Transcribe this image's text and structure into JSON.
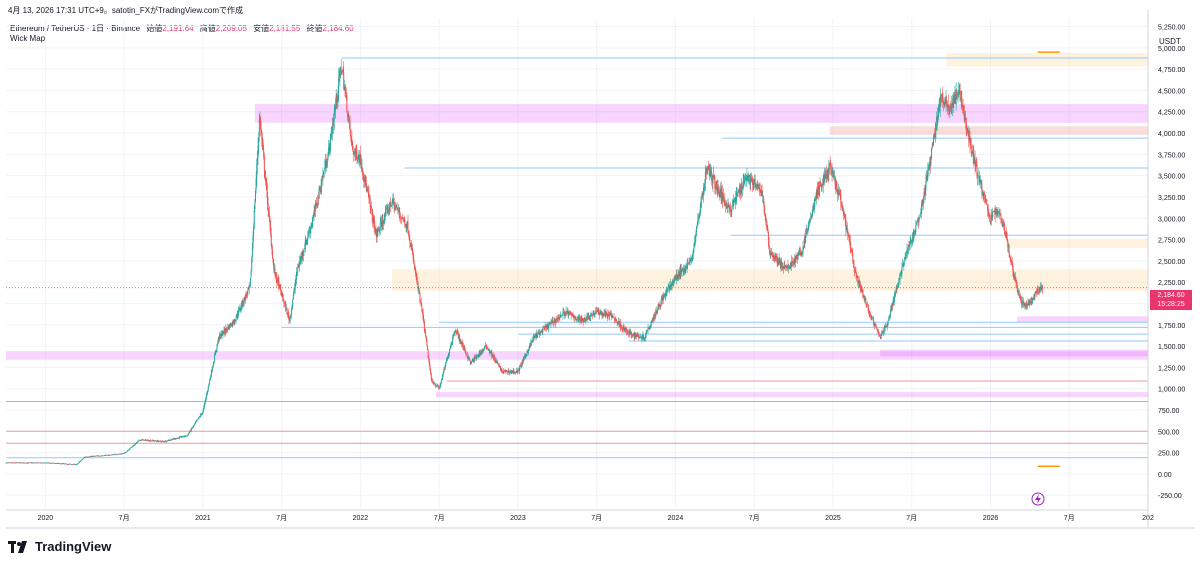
{
  "header": {
    "caption": "4月 13, 2026 17:31 UTC+9。satotin_FXがTradingView.comで作成",
    "symbol": "Ethereum / TetherUS · 1日 · Binance",
    "ohlc": [
      {
        "label": "始値",
        "value": "2,191.64"
      },
      {
        "label": "高値",
        "value": "2,209.05"
      },
      {
        "label": "安値",
        "value": "2,181.55"
      },
      {
        "label": "終値",
        "value": "2,184.60"
      }
    ],
    "indicator": "Wick Map"
  },
  "price_axis": {
    "unit": "USDT",
    "last_price": "2,184.60",
    "countdown": "15:28:25"
  },
  "branding": {
    "name": "TradingView"
  },
  "colors": {
    "up": "#26a69a",
    "down": "#ef5350",
    "price_line": "#e9356b",
    "zone_magenta": "#e040fb",
    "zone_orange": "#ffb74d",
    "zone_red": "#ef9a9a",
    "level_blue": "#90caf9",
    "grid": "#f0f3fa"
  },
  "chart_data": {
    "type": "candlestick",
    "x_ticks": [
      "2020",
      "7月",
      "2021",
      "7月",
      "2022",
      "7月",
      "2023",
      "7月",
      "2024",
      "7月",
      "2025",
      "7月",
      "2026",
      "7月",
      "202"
    ],
    "y_ticks": [
      "5,250.00",
      "5,000.00",
      "4,750.00",
      "4,500.00",
      "4,250.00",
      "4,000.00",
      "3,750.00",
      "3,500.00",
      "3,250.00",
      "3,000.00",
      "2,750.00",
      "2,500.00",
      "2,250.00",
      "2,000.00",
      "1,750.00",
      "1,500.00",
      "1,250.00",
      "1,000.00",
      "750.00",
      "500.00",
      "250.00",
      "0.00",
      "-250.00"
    ],
    "ylim": [
      -400,
      5350
    ],
    "xlim": [
      2019.75,
      2027.0
    ],
    "path": [
      [
        2019.75,
        130
      ],
      [
        2020.0,
        130
      ],
      [
        2020.2,
        110
      ],
      [
        2020.25,
        200
      ],
      [
        2020.4,
        220
      ],
      [
        2020.5,
        240
      ],
      [
        2020.6,
        400
      ],
      [
        2020.75,
        380
      ],
      [
        2020.9,
        450
      ],
      [
        2021.0,
        730
      ],
      [
        2021.1,
        1600
      ],
      [
        2021.2,
        1800
      ],
      [
        2021.3,
        2200
      ],
      [
        2021.36,
        4200
      ],
      [
        2021.45,
        2400
      ],
      [
        2021.55,
        1800
      ],
      [
        2021.6,
        2400
      ],
      [
        2021.7,
        3000
      ],
      [
        2021.8,
        3800
      ],
      [
        2021.88,
        4800
      ],
      [
        2021.95,
        3800
      ],
      [
        2022.0,
        3700
      ],
      [
        2022.1,
        2800
      ],
      [
        2022.2,
        3200
      ],
      [
        2022.3,
        2900
      ],
      [
        2022.4,
        1800
      ],
      [
        2022.45,
        1100
      ],
      [
        2022.5,
        1000
      ],
      [
        2022.6,
        1700
      ],
      [
        2022.7,
        1300
      ],
      [
        2022.8,
        1500
      ],
      [
        2022.9,
        1200
      ],
      [
        2023.0,
        1200
      ],
      [
        2023.1,
        1600
      ],
      [
        2023.3,
        1900
      ],
      [
        2023.4,
        1800
      ],
      [
        2023.5,
        1900
      ],
      [
        2023.6,
        1850
      ],
      [
        2023.7,
        1650
      ],
      [
        2023.8,
        1600
      ],
      [
        2023.9,
        2000
      ],
      [
        2024.0,
        2300
      ],
      [
        2024.1,
        2500
      ],
      [
        2024.2,
        3600
      ],
      [
        2024.28,
        3300
      ],
      [
        2024.35,
        3100
      ],
      [
        2024.45,
        3500
      ],
      [
        2024.55,
        3300
      ],
      [
        2024.6,
        2600
      ],
      [
        2024.7,
        2400
      ],
      [
        2024.8,
        2600
      ],
      [
        2024.9,
        3300
      ],
      [
        2024.98,
        3600
      ],
      [
        2025.05,
        3200
      ],
      [
        2025.15,
        2300
      ],
      [
        2025.25,
        1800
      ],
      [
        2025.3,
        1600
      ],
      [
        2025.35,
        1800
      ],
      [
        2025.45,
        2500
      ],
      [
        2025.55,
        3000
      ],
      [
        2025.62,
        3700
      ],
      [
        2025.68,
        4400
      ],
      [
        2025.75,
        4300
      ],
      [
        2025.8,
        4500
      ],
      [
        2025.88,
        3800
      ],
      [
        2025.95,
        3300
      ],
      [
        2026.0,
        3000
      ],
      [
        2026.05,
        3100
      ],
      [
        2026.1,
        2800
      ],
      [
        2026.15,
        2300
      ],
      [
        2026.2,
        2000
      ],
      [
        2026.25,
        2000
      ],
      [
        2026.3,
        2150
      ],
      [
        2026.33,
        2184.6
      ]
    ],
    "zones": [
      {
        "color": "magenta",
        "x0": 2021.33,
        "x1": 2027.0,
        "y0": 4120,
        "y1": 4340
      },
      {
        "color": "magenta",
        "x0": 2019.75,
        "x1": 2027.0,
        "y0": 1340,
        "y1": 1440
      },
      {
        "color": "magenta",
        "x0": 2022.48,
        "x1": 2027.0,
        "y0": 900,
        "y1": 960
      },
      {
        "color": "magenta",
        "x0": 2026.17,
        "x1": 2027.0,
        "y0": 1780,
        "y1": 1850
      },
      {
        "color": "magenta",
        "x0": 2025.3,
        "x1": 2027.0,
        "y0": 1380,
        "y1": 1460
      },
      {
        "color": "orange",
        "x0": 2022.2,
        "x1": 2027.0,
        "y0": 2150,
        "y1": 2400
      },
      {
        "color": "orange",
        "x0": 2025.72,
        "x1": 2027.0,
        "y0": 4780,
        "y1": 4940
      },
      {
        "color": "orange",
        "x0": 2026.1,
        "x1": 2027.0,
        "y0": 2650,
        "y1": 2750
      },
      {
        "color": "red",
        "x0": 2024.98,
        "x1": 2027.0,
        "y0": 3980,
        "y1": 4080
      }
    ],
    "levels": [
      {
        "color": "blue",
        "x0": 2021.88,
        "y": 4880
      },
      {
        "color": "blue",
        "x0": 2022.28,
        "y": 3590
      },
      {
        "color": "blue",
        "x0": 2024.3,
        "y": 3940
      },
      {
        "color": "blue",
        "x0": 2024.35,
        "y": 2800
      },
      {
        "color": "blue",
        "x0": 2021.5,
        "y": 1720
      },
      {
        "color": "blue",
        "x0": 2022.5,
        "y": 1780
      },
      {
        "color": "blue",
        "x0": 2023.0,
        "y": 1640
      },
      {
        "color": "blue",
        "x0": 2023.7,
        "y": 1560
      },
      {
        "color": "red",
        "x0": 2022.55,
        "y": 1090
      },
      {
        "color": "red",
        "x0": 2019.75,
        "y": 360
      },
      {
        "color": "red",
        "x0": 2019.75,
        "y": 850
      },
      {
        "color": "blue",
        "x0": 2019.75,
        "y": 190
      },
      {
        "color": "red",
        "x0": 2019.75,
        "y": 500
      }
    ],
    "markers": [
      {
        "color": "orange",
        "x0": 2026.3,
        "x1": 2026.44,
        "y": 4950
      },
      {
        "color": "orange",
        "x0": 2026.3,
        "x1": 2026.44,
        "y": 90
      }
    ],
    "last_price": 2184.6
  }
}
